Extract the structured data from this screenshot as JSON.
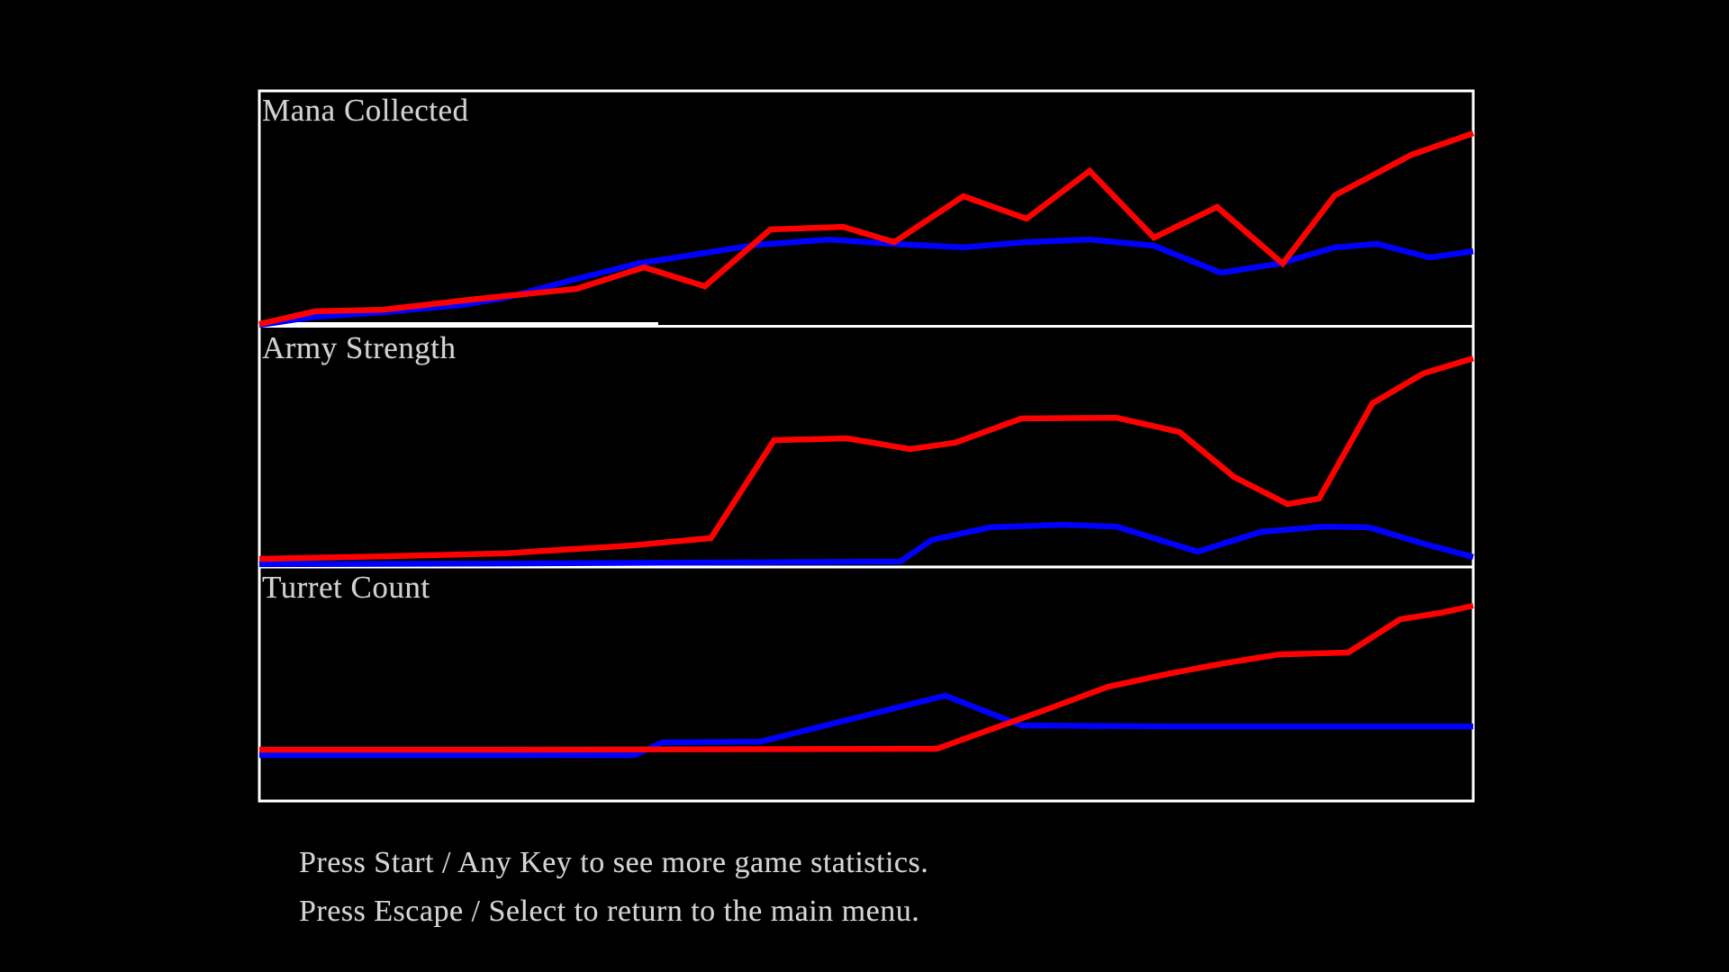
{
  "screen": {
    "background_color": "#000000",
    "border_color": "#ffffff",
    "text_color": "#d2d2d2"
  },
  "colors": {
    "player_red": "#ff0000",
    "player_blue": "#0000ff"
  },
  "footer": {
    "line1": "Press Start / Any Key to see more game statistics.",
    "line2": "Press Escape / Select to return to the main menu."
  },
  "chart_data": [
    {
      "type": "line",
      "title": "Mana Collected",
      "xlabel": "",
      "ylabel": "",
      "x_range": [
        0,
        1
      ],
      "y_range": [
        0,
        1
      ],
      "grid": false,
      "legend_position": "none",
      "series": [
        {
          "name": "blue player",
          "color": "#0000ff",
          "points": [
            [
              0.0,
              0.0
            ],
            [
              0.046,
              0.035
            ],
            [
              0.102,
              0.054
            ],
            [
              0.167,
              0.085
            ],
            [
              0.202,
              0.115
            ],
            [
              0.261,
              0.196
            ],
            [
              0.311,
              0.262
            ],
            [
              0.358,
              0.3
            ],
            [
              0.409,
              0.342
            ],
            [
              0.469,
              0.365
            ],
            [
              0.523,
              0.346
            ],
            [
              0.58,
              0.331
            ],
            [
              0.632,
              0.354
            ],
            [
              0.684,
              0.365
            ],
            [
              0.737,
              0.338
            ],
            [
              0.792,
              0.223
            ],
            [
              0.84,
              0.262
            ],
            [
              0.886,
              0.331
            ],
            [
              0.921,
              0.346
            ],
            [
              0.964,
              0.288
            ],
            [
              1.0,
              0.315
            ]
          ]
        },
        {
          "name": "red player",
          "color": "#ff0000",
          "points": [
            [
              0.0,
              0.004
            ],
            [
              0.046,
              0.058
            ],
            [
              0.102,
              0.065
            ],
            [
              0.167,
              0.104
            ],
            [
              0.202,
              0.123
            ],
            [
              0.261,
              0.154
            ],
            [
              0.317,
              0.246
            ],
            [
              0.367,
              0.165
            ],
            [
              0.421,
              0.408
            ],
            [
              0.481,
              0.419
            ],
            [
              0.523,
              0.354
            ],
            [
              0.58,
              0.55
            ],
            [
              0.632,
              0.454
            ],
            [
              0.684,
              0.658
            ],
            [
              0.737,
              0.373
            ],
            [
              0.789,
              0.504
            ],
            [
              0.843,
              0.262
            ],
            [
              0.886,
              0.554
            ],
            [
              0.949,
              0.727
            ],
            [
              1.0,
              0.819
            ]
          ]
        }
      ]
    },
    {
      "type": "line",
      "title": "Army Strength",
      "xlabel": "",
      "ylabel": "",
      "x_range": [
        0,
        1
      ],
      "y_range": [
        0,
        1
      ],
      "grid": false,
      "legend_position": "none",
      "series": [
        {
          "name": "blue player",
          "color": "#0000ff",
          "points": [
            [
              0.0,
              0.008
            ],
            [
              0.202,
              0.011
            ],
            [
              0.528,
              0.019
            ],
            [
              0.554,
              0.109
            ],
            [
              0.602,
              0.162
            ],
            [
              0.662,
              0.173
            ],
            [
              0.706,
              0.165
            ],
            [
              0.773,
              0.06
            ],
            [
              0.825,
              0.143
            ],
            [
              0.877,
              0.165
            ],
            [
              0.914,
              0.162
            ],
            [
              0.959,
              0.094
            ],
            [
              1.0,
              0.038
            ]
          ]
        },
        {
          "name": "red player",
          "color": "#ff0000",
          "points": [
            [
              0.0,
              0.03
            ],
            [
              0.102,
              0.041
            ],
            [
              0.202,
              0.053
            ],
            [
              0.306,
              0.086
            ],
            [
              0.372,
              0.117
            ],
            [
              0.424,
              0.526
            ],
            [
              0.484,
              0.534
            ],
            [
              0.536,
              0.489
            ],
            [
              0.573,
              0.515
            ],
            [
              0.628,
              0.617
            ],
            [
              0.706,
              0.62
            ],
            [
              0.758,
              0.56
            ],
            [
              0.803,
              0.372
            ],
            [
              0.847,
              0.259
            ],
            [
              0.873,
              0.282
            ],
            [
              0.917,
              0.68
            ],
            [
              0.959,
              0.805
            ],
            [
              1.0,
              0.868
            ]
          ]
        }
      ]
    },
    {
      "type": "line",
      "title": "Turret Count",
      "xlabel": "",
      "ylabel": "",
      "x_range": [
        0,
        1
      ],
      "y_range": [
        0,
        1
      ],
      "grid": false,
      "legend_position": "none",
      "series": [
        {
          "name": "blue player",
          "color": "#0000ff",
          "points": [
            [
              0.0,
              0.197
            ],
            [
              0.309,
              0.197
            ],
            [
              0.332,
              0.251
            ],
            [
              0.413,
              0.255
            ],
            [
              0.565,
              0.452
            ],
            [
              0.628,
              0.324
            ],
            [
              0.751,
              0.32
            ],
            [
              1.0,
              0.32
            ]
          ]
        },
        {
          "name": "red player",
          "color": "#ff0000",
          "points": [
            [
              0.0,
              0.22
            ],
            [
              0.202,
              0.22
            ],
            [
              0.558,
              0.224
            ],
            [
              0.595,
              0.293
            ],
            [
              0.647,
              0.39
            ],
            [
              0.699,
              0.49
            ],
            [
              0.751,
              0.548
            ],
            [
              0.795,
              0.591
            ],
            [
              0.84,
              0.629
            ],
            [
              0.897,
              0.637
            ],
            [
              0.94,
              0.78
            ],
            [
              0.973,
              0.807
            ],
            [
              1.0,
              0.838
            ]
          ]
        }
      ]
    }
  ]
}
